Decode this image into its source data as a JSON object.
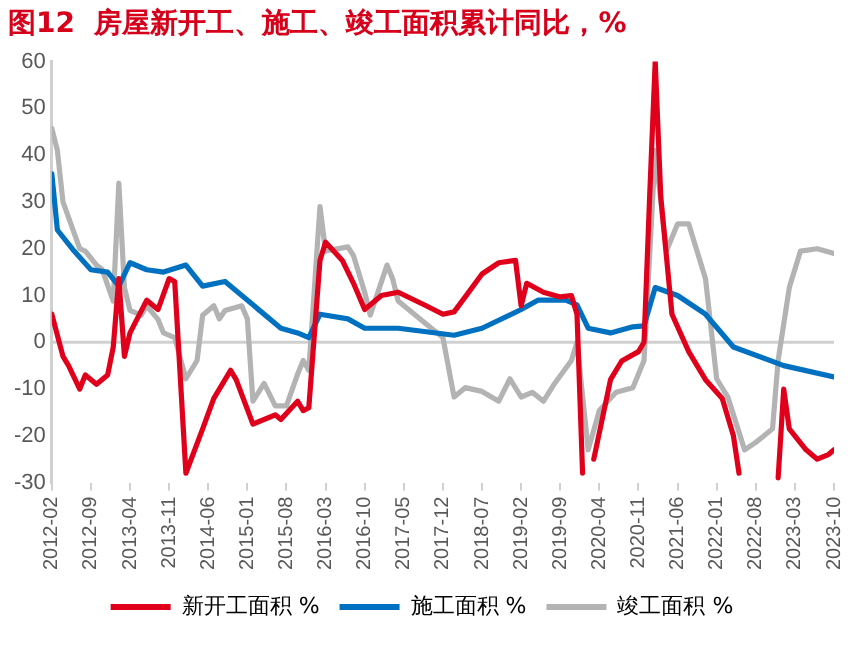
{
  "chart_data": {
    "type": "line",
    "title": "图12  房屋新开工、施工、竣工面积累计同比，%",
    "xlim": [
      "2012-02",
      "2023-10"
    ],
    "xticks": [
      "2012-02",
      "2012-09",
      "2013-04",
      "2013-11",
      "2014-06",
      "2015-01",
      "2015-08",
      "2016-03",
      "2016-10",
      "2017-05",
      "2017-12",
      "2018-07",
      "2019-02",
      "2019-09",
      "2020-04",
      "2020-11",
      "2021-06",
      "2022-01",
      "2022-08",
      "2023-03",
      "2023-10"
    ],
    "ylim": [
      -30,
      60
    ],
    "yticks": [
      -30,
      -20,
      -10,
      0,
      10,
      20,
      30,
      40,
      50,
      60
    ],
    "grid": false,
    "ref_lines": [
      {
        "axis": "y",
        "value": 0,
        "color": "#d0d0d0"
      }
    ],
    "legend": "bottom",
    "marker": "none",
    "line_style": "solid",
    "series": [
      {
        "name": "新开工面积 %",
        "color": "#e0001b",
        "x": [
          "2012-02",
          "2012-04",
          "2012-05",
          "2012-07",
          "2012-08",
          "2012-10",
          "2012-12",
          "2013-01",
          "2013-02",
          "2013-03",
          "2013-04",
          "2013-07",
          "2013-09",
          "2013-11",
          "2013-12",
          "2014-02",
          "2014-05",
          "2014-07",
          "2014-10",
          "2014-11",
          "2015-02",
          "2015-06",
          "2015-07",
          "2015-10",
          "2015-11",
          "2015-12",
          "2016-02",
          "2016-03",
          "2016-06",
          "2016-08",
          "2016-10",
          "2017-01",
          "2017-04",
          "2017-09",
          "2017-12",
          "2018-02",
          "2018-04",
          "2018-07",
          "2018-10",
          "2019-01",
          "2019-02",
          "2019-03",
          "2019-06",
          "2019-09",
          "2019-11",
          "2019-12",
          "2020-01",
          "2020-02",
          "2020-03",
          "2020-06",
          "2020-08",
          "2020-11",
          "2020-12",
          "2021-01",
          "2021-02",
          "2021-03",
          "2021-05",
          "2021-08",
          "2021-11",
          "2022-02",
          "2022-04",
          "2022-05",
          "2022-08",
          "2022-12",
          "2023-01",
          "2023-02",
          "2023-05",
          "2023-07",
          "2023-09",
          "2023-10"
        ],
        "values": [
          6,
          -3,
          -5,
          -10,
          -7,
          -9,
          -7,
          -1,
          13.6,
          -3,
          2,
          9,
          7,
          13.6,
          13,
          -28,
          -18.5,
          -12,
          -6,
          -8,
          -17.5,
          -15.5,
          -16.5,
          -12.6,
          -14.6,
          -14,
          17.5,
          21.4,
          17.5,
          12.6,
          7,
          10,
          10.7,
          7.8,
          6,
          6.5,
          9.7,
          14.6,
          17,
          17.5,
          7.8,
          12.6,
          10.7,
          9.7,
          10,
          6,
          -28,
          null,
          -25,
          -8,
          -4,
          -2,
          0,
          31,
          60,
          31,
          6,
          -2,
          -8,
          -12,
          -20,
          -28,
          null,
          -29,
          -10,
          -18.5,
          -23,
          -25,
          -24,
          -23
        ]
      },
      {
        "name": "施工面积 %",
        "color": "#0070c0",
        "x": [
          "2012-02",
          "2012-03",
          "2012-06",
          "2012-09",
          "2012-12",
          "2013-02",
          "2013-04",
          "2013-07",
          "2013-10",
          "2014-02",
          "2014-05",
          "2014-09",
          "2015-02",
          "2015-07",
          "2015-10",
          "2015-12",
          "2016-02",
          "2016-07",
          "2016-10",
          "2017-04",
          "2018-02",
          "2018-07",
          "2019-02",
          "2019-05",
          "2019-10",
          "2019-12",
          "2020-02",
          "2020-06",
          "2020-10",
          "2020-12",
          "2021-02",
          "2021-06",
          "2021-11",
          "2022-04",
          "2023-01",
          "2023-10"
        ],
        "values": [
          36,
          24,
          19.5,
          15.5,
          15,
          12,
          17,
          15.5,
          15,
          16.5,
          12,
          13,
          8,
          3,
          2,
          1,
          6,
          5,
          3,
          3,
          1.5,
          3,
          7,
          9,
          9,
          8,
          3,
          2,
          3.3,
          3.5,
          11.7,
          10,
          6,
          -1,
          -5,
          -7.4
        ]
      },
      {
        "name": "竣工面积 %",
        "color": "#b3b3b3",
        "x": [
          "2012-02",
          "2012-03",
          "2012-04",
          "2012-07",
          "2012-08",
          "2012-10",
          "2012-11",
          "2013-01",
          "2013-02",
          "2013-03",
          "2013-04",
          "2013-06",
          "2013-07",
          "2013-09",
          "2013-10",
          "2013-12",
          "2014-02",
          "2014-04",
          "2014-05",
          "2014-07",
          "2014-08",
          "2014-09",
          "2014-12",
          "2015-01",
          "2015-02",
          "2015-04",
          "2015-06",
          "2015-08",
          "2015-10",
          "2015-11",
          "2015-12",
          "2016-02",
          "2016-03",
          "2016-07",
          "2016-08",
          "2016-10",
          "2016-11",
          "2017-02",
          "2017-03",
          "2017-04",
          "2017-09",
          "2017-12",
          "2018-02",
          "2018-04",
          "2018-07",
          "2018-10",
          "2018-12",
          "2019-02",
          "2019-04",
          "2019-06",
          "2019-08",
          "2019-11",
          "2019-12",
          "2020-02",
          "2020-04",
          "2020-07",
          "2020-10",
          "2020-12",
          "2021-02",
          "2021-04",
          "2021-06",
          "2021-08",
          "2021-11",
          "2022-01",
          "2022-03",
          "2022-06",
          "2022-08",
          "2022-11",
          "2022-12",
          "2023-02",
          "2023-04",
          "2023-07",
          "2023-10"
        ],
        "values": [
          45.7,
          41,
          30,
          20,
          19.5,
          16.5,
          15.6,
          8.8,
          34,
          11.7,
          6.8,
          5.8,
          7.8,
          4.9,
          2,
          1,
          -7.8,
          -3.9,
          5.8,
          7.8,
          5,
          6.8,
          7.8,
          5,
          -12.6,
          -8.8,
          -13.6,
          -13.6,
          -6.8,
          -3.9,
          -6,
          29,
          19.5,
          20.4,
          18.5,
          10.7,
          5.8,
          16.5,
          13.6,
          8.8,
          3.9,
          1,
          -11.7,
          -9.7,
          -10.5,
          -12.6,
          -7.8,
          -11.7,
          -10.7,
          -12.6,
          -8.8,
          -3.9,
          0,
          -23,
          -14.6,
          -10.7,
          -9.7,
          -3.9,
          41,
          19.5,
          25.3,
          25.3,
          13.6,
          -7.8,
          -11.7,
          -23,
          -21.4,
          -18.5,
          -3.9,
          11.7,
          19.5,
          20,
          19
        ]
      }
    ]
  }
}
